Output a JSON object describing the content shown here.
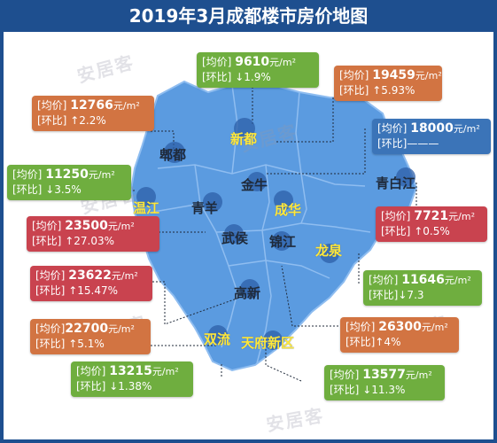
{
  "title": "2019年3月成都楼市房价地图",
  "watermark": "安居客",
  "colors": {
    "title_bg": "#1e4f8f",
    "map_fill": "#5b9be0",
    "map_border": "#8fbdf0",
    "card_green": "#6fae3f",
    "card_orange": "#d27442",
    "card_red": "#c9434f",
    "card_blue": "#3b74b8"
  },
  "districts": [
    {
      "id": "pidu",
      "name": "郫都",
      "style": "dark"
    },
    {
      "id": "xindu",
      "name": "新都",
      "style": "yellow"
    },
    {
      "id": "jinniu",
      "name": "金牛",
      "style": "dark"
    },
    {
      "id": "qingbaijiang",
      "name": "青白江",
      "style": "dark"
    },
    {
      "id": "wenjiang",
      "name": "温江",
      "style": "yellow"
    },
    {
      "id": "qingyang",
      "name": "青羊",
      "style": "dark"
    },
    {
      "id": "chenghua",
      "name": "成华",
      "style": "yellow"
    },
    {
      "id": "wuhou",
      "name": "武侯",
      "style": "dark"
    },
    {
      "id": "jinjiang",
      "name": "锦江",
      "style": "dark"
    },
    {
      "id": "longquan",
      "name": "龙泉",
      "style": "yellow"
    },
    {
      "id": "gaoxin",
      "name": "高新",
      "style": "dark"
    },
    {
      "id": "shuangliu",
      "name": "双流",
      "style": "yellow"
    },
    {
      "id": "tianfu",
      "name": "天府新区",
      "style": "yellow"
    }
  ],
  "price_label": "[均价]",
  "change_label": "[环比]",
  "unit": "元/m²",
  "cards": [
    {
      "district": "xindu",
      "price": "9610",
      "change": "↓1.9%",
      "color": "green"
    },
    {
      "district": "qingbaijiang-north",
      "price": "19459",
      "change": "↑5.93%",
      "color": "orange"
    },
    {
      "district": "pidu",
      "price": "12766",
      "change": "↑2.2%",
      "color": "orange"
    },
    {
      "district": "jinniu",
      "price": "18000",
      "change": "———",
      "color": "blue"
    },
    {
      "district": "wenjiang",
      "price": "11250",
      "change": "↓3.5%",
      "color": "green"
    },
    {
      "district": "qingbaijiang",
      "price": "7721",
      "change": "↑0.5%",
      "color": "red"
    },
    {
      "district": "qingyang",
      "price": "23500",
      "change": "↑27.03%",
      "color": "red"
    },
    {
      "district": "longquan",
      "price": "11646",
      "change": "↓7.3",
      "color": "green"
    },
    {
      "district": "wuhou",
      "price": "23622",
      "change": "↑15.47%",
      "color": "red"
    },
    {
      "district": "gaoxin",
      "price": "26300",
      "change": "↑4%",
      "color": "orange"
    },
    {
      "district": "shuangliu",
      "price": "22700",
      "change": "↑5.1%",
      "color": "orange"
    },
    {
      "district": "tianfu",
      "price": "13215",
      "change": "↓1.38%",
      "color": "green"
    },
    {
      "district": "jinjiang",
      "price": "13577",
      "change": "↓11.3%",
      "color": "green"
    }
  ]
}
